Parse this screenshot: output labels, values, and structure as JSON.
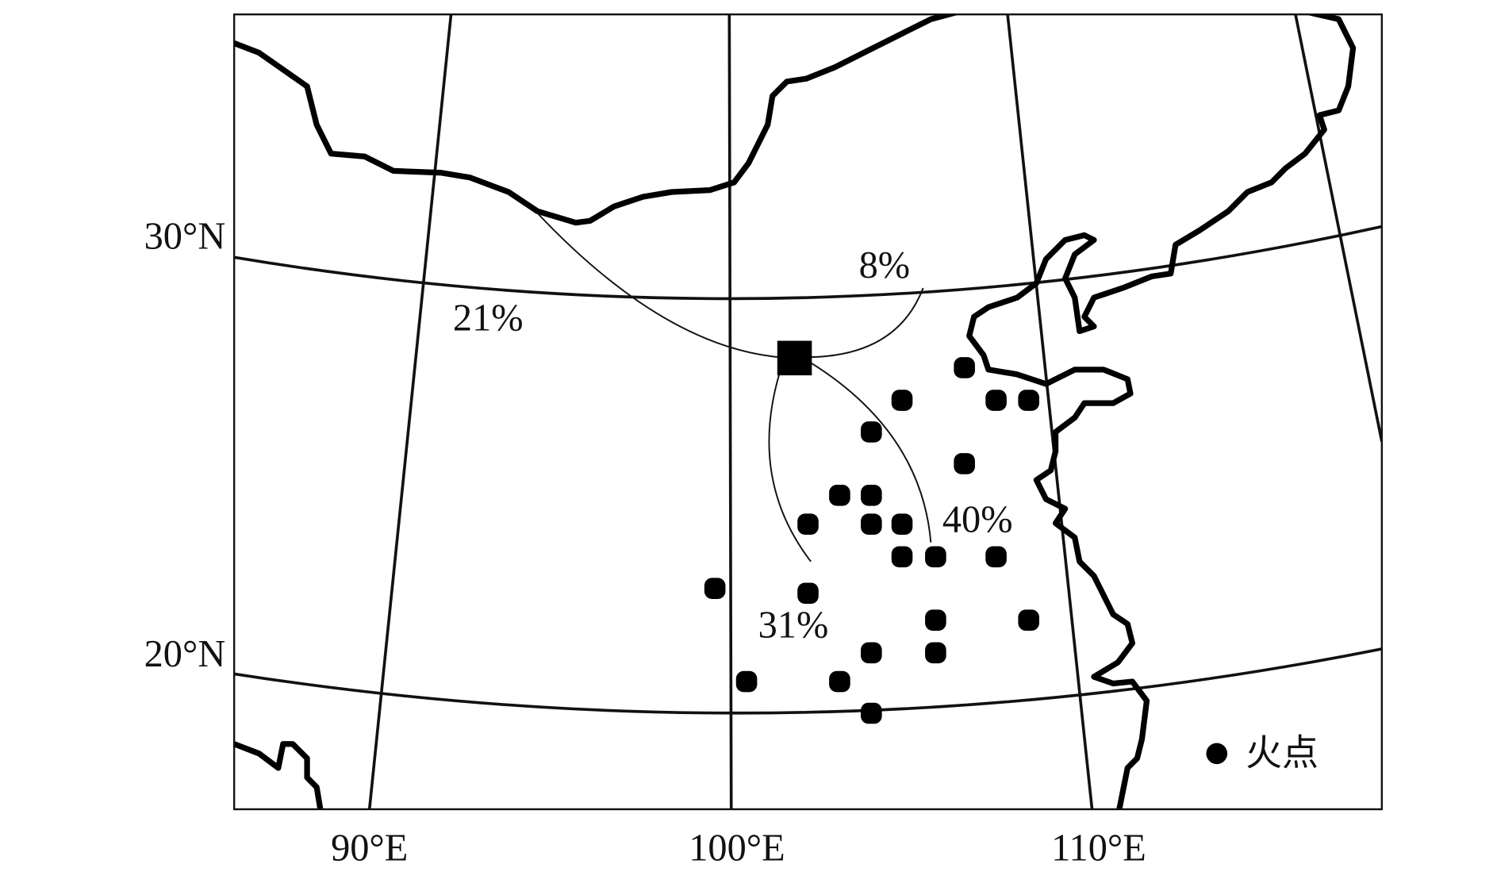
{
  "map": {
    "latitude_labels": [
      "30°N",
      "20°N"
    ],
    "longitude_labels": [
      "90°E",
      "100°E",
      "110°E"
    ],
    "flow_labels": [
      "8%",
      "21%",
      "40%",
      "31%"
    ],
    "legend": {
      "label": "火点"
    }
  }
}
